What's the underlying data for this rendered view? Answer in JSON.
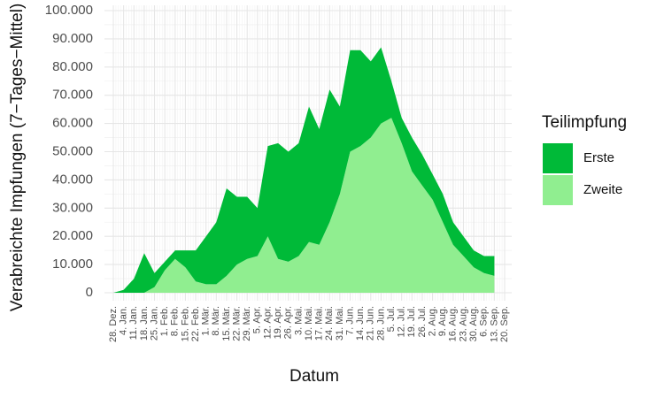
{
  "chart_data": {
    "type": "stacked_area",
    "x_label": "Datum",
    "y_label": "Verabreichte Impfungen (7−Tages−Mittel)",
    "legend_title": "Teilimpfung",
    "legend_position": "right",
    "grid": true,
    "categories": [
      "28. Dez.",
      "4. Jan.",
      "11. Jan.",
      "18. Jan.",
      "25. Jan.",
      "1. Feb.",
      "8. Feb.",
      "15. Feb.",
      "22. Feb.",
      "1. Mär.",
      "8. Mär.",
      "15. Mär.",
      "22. Mär.",
      "29. Mär.",
      "5. Apr.",
      "12. Apr.",
      "19. Apr.",
      "26. Apr.",
      "3. Mai.",
      "10. Mai.",
      "17. Mai.",
      "24. Mai.",
      "31. Mai.",
      "7. Jun.",
      "14. Jun.",
      "21. Jun.",
      "28. Jun.",
      "5. Jul.",
      "12. Jul.",
      "19. Jul.",
      "26. Jul.",
      "2. Aug.",
      "9. Aug.",
      "16. Aug.",
      "23. Aug.",
      "30. Aug.",
      "6. Sep.",
      "13. Sep.",
      "20. Sep."
    ],
    "series": [
      {
        "name": "Erste",
        "color": "#00ba38",
        "values": [
          0,
          1000,
          5000,
          14000,
          5000,
          3000,
          3000,
          6000,
          11000,
          17000,
          22000,
          31000,
          24000,
          22000,
          17000,
          32000,
          41000,
          39000,
          40000,
          48000,
          41000,
          47000,
          31000,
          36000,
          34000,
          27000,
          27000,
          13000,
          9000,
          12000,
          11000,
          9000,
          10000,
          8000,
          7000,
          6000,
          6000,
          7000,
          null
        ]
      },
      {
        "name": "Zweite",
        "color": "#90ee90",
        "values": [
          0,
          0,
          0,
          0,
          2000,
          8000,
          12000,
          9000,
          4000,
          3000,
          3000,
          6000,
          10000,
          12000,
          13000,
          20000,
          12000,
          11000,
          13000,
          18000,
          17000,
          25000,
          35000,
          50000,
          52000,
          55000,
          60000,
          62000,
          53000,
          43000,
          38000,
          33000,
          25000,
          17000,
          13000,
          9000,
          7000,
          6000,
          null
        ]
      }
    ],
    "ylim": [
      0,
      100000
    ],
    "yticks": [
      0,
      {
        "value": 10000,
        "label": "10.000"
      },
      {
        "value": 20000,
        "label": "20.000"
      },
      {
        "value": 30000,
        "label": "30.000"
      },
      {
        "value": 40000,
        "label": "40.000"
      },
      {
        "value": 50000,
        "label": "50.000"
      },
      {
        "value": 60000,
        "label": "60.000"
      },
      {
        "value": 70000,
        "label": "70.000"
      },
      {
        "value": 80000,
        "label": "80.000"
      },
      {
        "value": 90000,
        "label": "90.000"
      },
      {
        "value": 100000,
        "label": "100.000"
      }
    ]
  }
}
